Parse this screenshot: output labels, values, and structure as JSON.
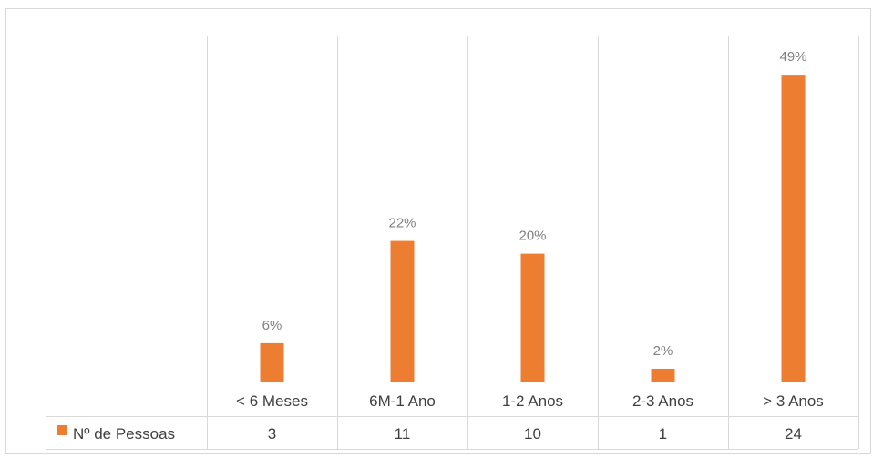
{
  "colors": {
    "bar": "#ED7D31",
    "grid": "#d9d9d9",
    "data_label": "#808080",
    "axis_text": "#404040"
  },
  "chart_data": {
    "type": "bar",
    "categories": [
      "< 6 Meses",
      "6M-1 Ano",
      "1-2 Anos",
      "2-3 Anos",
      "> 3 Anos"
    ],
    "series": [
      {
        "name": "Nº de Pessoas",
        "values": [
          3,
          11,
          10,
          1,
          24
        ],
        "data_labels": [
          "6%",
          "22%",
          "20%",
          "2%",
          "49%"
        ]
      }
    ],
    "ylim": [
      0,
      27
    ],
    "grid": "vertical",
    "legend": "data-table-left"
  }
}
